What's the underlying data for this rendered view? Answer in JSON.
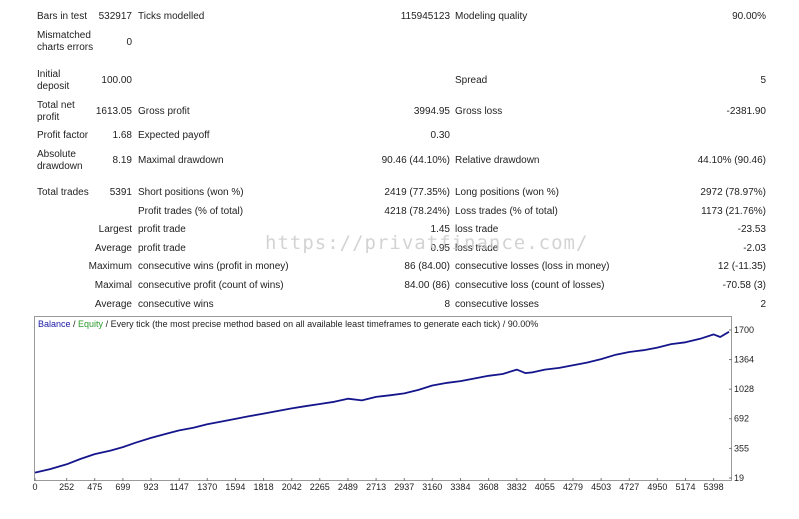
{
  "report": {
    "bars_in_test_label": "Bars in test",
    "bars_in_test_value": "532917",
    "ticks_modelled_label": "Ticks modelled",
    "ticks_modelled_value": "115945123",
    "modeling_quality_label": "Modeling quality",
    "modeling_quality_value": "90.00%",
    "mismatched_label": "Mismatched charts errors",
    "mismatched_value": "0",
    "initial_deposit_label": "Initial deposit",
    "initial_deposit_value": "100.00",
    "spread_label": "Spread",
    "spread_value": "5",
    "total_net_profit_label": "Total net profit",
    "total_net_profit_value": "1613.05",
    "gross_profit_label": "Gross profit",
    "gross_profit_value": "3994.95",
    "gross_loss_label": "Gross loss",
    "gross_loss_value": "-2381.90",
    "profit_factor_label": "Profit factor",
    "profit_factor_value": "1.68",
    "expected_payoff_label": "Expected payoff",
    "expected_payoff_value": "0.30",
    "absolute_drawdown_label": "Absolute drawdown",
    "absolute_drawdown_value": "8.19",
    "maximal_drawdown_label": "Maximal drawdown",
    "maximal_drawdown_value": "90.46 (44.10%)",
    "relative_drawdown_label": "Relative drawdown",
    "relative_drawdown_value": "44.10% (90.46)",
    "total_trades_label": "Total trades",
    "total_trades_value": "5391",
    "short_positions_label": "Short positions (won %)",
    "short_positions_value": "2419 (77.35%)",
    "long_positions_label": "Long positions (won %)",
    "long_positions_value": "2972 (78.97%)",
    "profit_trades_label": "Profit trades (% of total)",
    "profit_trades_value": "4218 (78.24%)",
    "loss_trades_label": "Loss trades (% of total)",
    "loss_trades_value": "1173 (21.76%)",
    "largest_label": "Largest",
    "largest_profit_label": "profit trade",
    "largest_profit_value": "1.45",
    "largest_loss_label": "loss trade",
    "largest_loss_value": "-23.53",
    "average_label": "Average",
    "average_profit_label": "profit trade",
    "average_profit_value": "0.95",
    "average_loss_label": "loss trade",
    "average_loss_value": "-2.03",
    "maximum_label": "Maximum",
    "max_cons_wins_label": "consecutive wins (profit in money)",
    "max_cons_wins_value": "86 (84.00)",
    "max_cons_losses_label": "consecutive losses (loss in money)",
    "max_cons_losses_value": "12 (-11.35)",
    "maximal_label": "Maximal",
    "maximal_cons_profit_label": "consecutive profit (count of wins)",
    "maximal_cons_profit_value": "84.00 (86)",
    "maximal_cons_loss_label": "consecutive loss (count of losses)",
    "maximal_cons_loss_value": "-70.58 (3)",
    "average2_label": "Average",
    "avg_cons_wins_label": "consecutive wins",
    "avg_cons_wins_value": "8",
    "avg_cons_losses_label": "consecutive losses",
    "avg_cons_losses_value": "2"
  },
  "watermark": "https://privatfinance.com/",
  "chart_title": {
    "balance": "Balance",
    "sep": " / ",
    "equity": "Equity",
    "rest": " / Every tick (the most precise method based on all available least timeframes to generate each tick) / 90.00%"
  },
  "colors": {
    "balance_title": "#1a1aa6",
    "equity_title": "#2a9a2a",
    "line": "#15158c"
  },
  "chart_data": {
    "type": "line",
    "x_ticks": [
      "0",
      "252",
      "475",
      "699",
      "923",
      "1147",
      "1370",
      "1594",
      "1818",
      "2042",
      "2265",
      "2489",
      "2713",
      "2937",
      "3160",
      "3384",
      "3608",
      "3832",
      "4055",
      "4279",
      "4503",
      "4727",
      "4950",
      "5174",
      "5398"
    ],
    "y_ticks": [
      "19",
      "355",
      "692",
      "1028",
      "1364",
      "1700"
    ],
    "xlim": [
      0,
      5520
    ],
    "ylim": [
      19,
      1700
    ],
    "series": [
      {
        "name": "Balance",
        "x": [
          0,
          120,
          252,
          360,
          475,
          600,
          699,
          800,
          923,
          1040,
          1147,
          1260,
          1370,
          1480,
          1594,
          1700,
          1818,
          1930,
          2042,
          2150,
          2265,
          2380,
          2489,
          2600,
          2713,
          2830,
          2937,
          3050,
          3160,
          3280,
          3384,
          3500,
          3608,
          3720,
          3832,
          3900,
          3960,
          4055,
          4170,
          4279,
          4390,
          4503,
          4620,
          4727,
          4840,
          4950,
          5060,
          5174,
          5290,
          5398,
          5450,
          5520
        ],
        "y": [
          80,
          120,
          175,
          235,
          290,
          330,
          370,
          420,
          475,
          520,
          560,
          590,
          630,
          660,
          690,
          720,
          750,
          780,
          810,
          835,
          860,
          885,
          920,
          900,
          940,
          960,
          980,
          1020,
          1070,
          1100,
          1120,
          1150,
          1180,
          1200,
          1250,
          1210,
          1220,
          1250,
          1270,
          1300,
          1330,
          1370,
          1420,
          1450,
          1470,
          1500,
          1540,
          1560,
          1600,
          1650,
          1620,
          1680
        ]
      }
    ]
  }
}
